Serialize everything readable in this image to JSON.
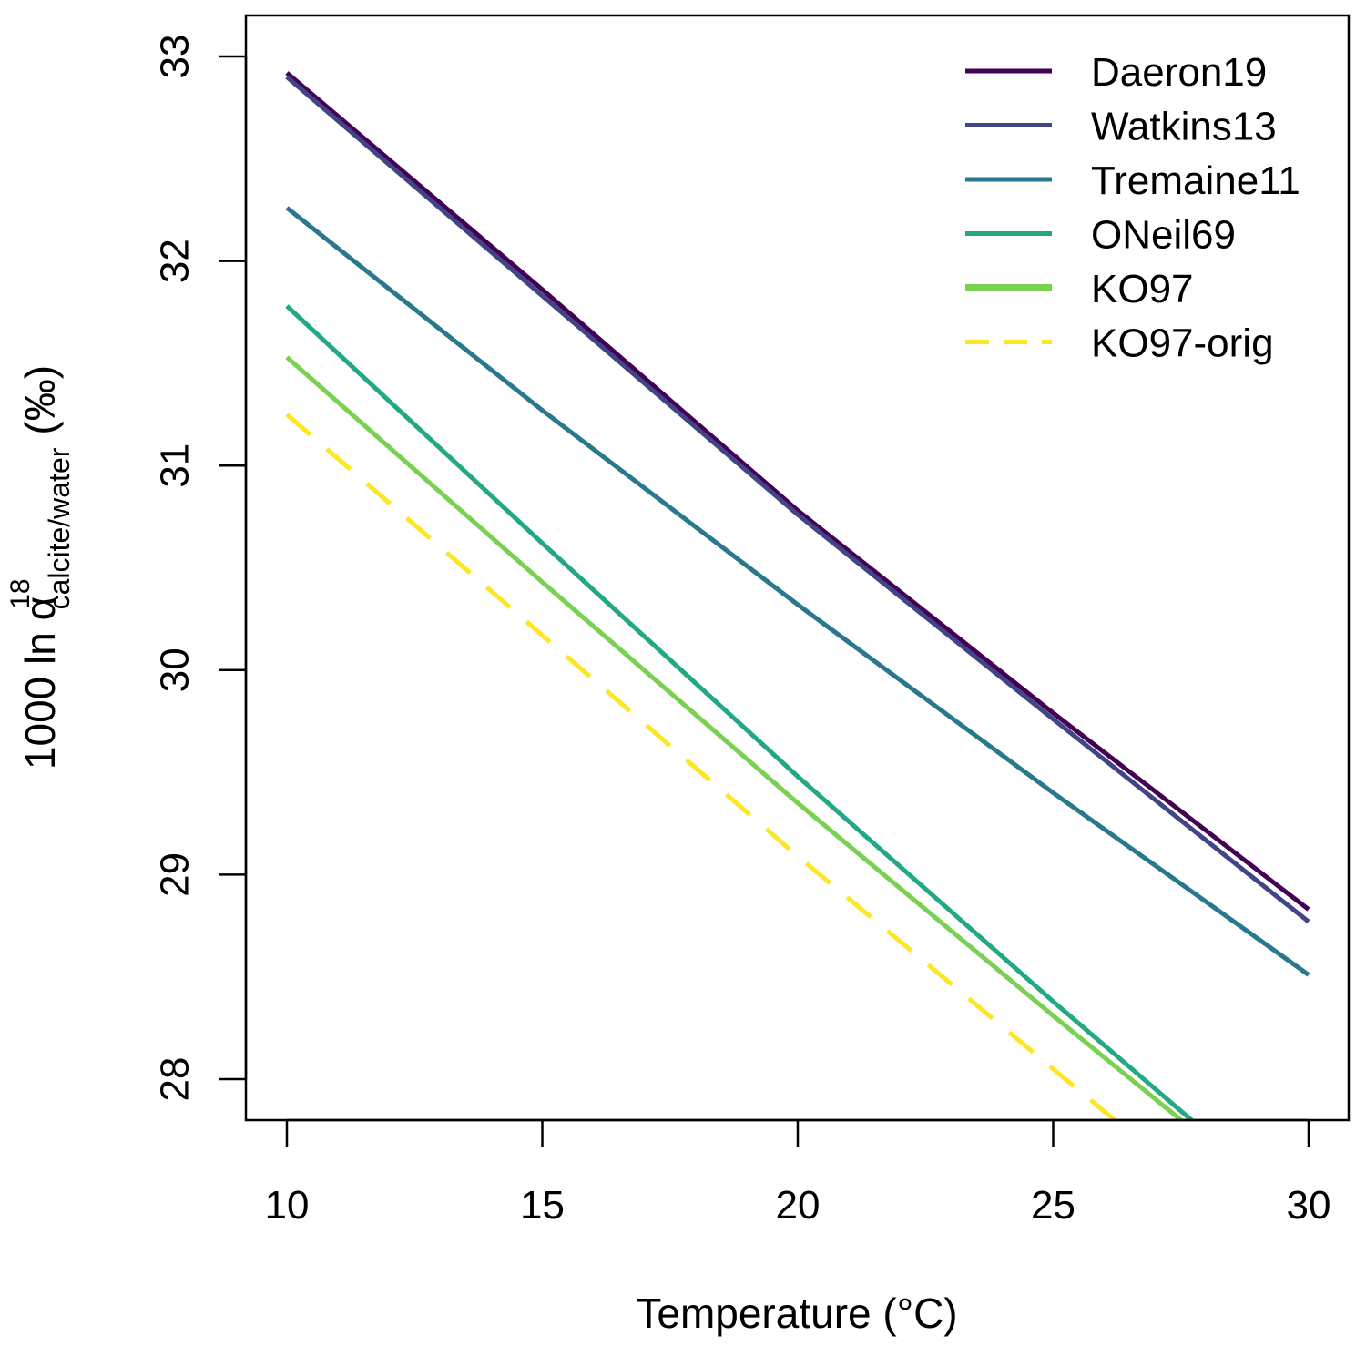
{
  "chart_data": {
    "type": "line",
    "title": "",
    "xlabel": "Temperature (°C)",
    "ylabel": {
      "prefix": "1000 ln α",
      "superscript": "18",
      "subscript": "calcite/water",
      "unit": "(‰)"
    },
    "xlim": [
      9.2,
      30.8
    ],
    "ylim": [
      27.8,
      33.2
    ],
    "x_ticks": [
      10,
      15,
      20,
      25,
      30
    ],
    "y_ticks": [
      28,
      29,
      30,
      31,
      32,
      33
    ],
    "x_tick_labels": [
      "10",
      "15",
      "20",
      "25",
      "30"
    ],
    "y_tick_labels": [
      "28",
      "29",
      "30",
      "31",
      "32",
      "33"
    ],
    "grid": false,
    "legend_position": "top-right",
    "series": [
      {
        "name": "Daeron19",
        "color": "#440154",
        "dash": "solid",
        "x": [
          10,
          15,
          20,
          25,
          30
        ],
        "y": [
          32.92,
          31.86,
          30.78,
          29.79,
          28.83
        ]
      },
      {
        "name": "Watkins13",
        "color": "#414487",
        "dash": "solid",
        "x": [
          10,
          15,
          20,
          25,
          30
        ],
        "y": [
          32.9,
          31.83,
          30.76,
          29.76,
          28.77
        ]
      },
      {
        "name": "Tremaine11",
        "color": "#2a788e",
        "dash": "solid",
        "x": [
          10,
          15,
          20,
          25,
          30
        ],
        "y": [
          32.26,
          31.27,
          30.32,
          29.4,
          28.51
        ]
      },
      {
        "name": "ONeil69",
        "color": "#22a884",
        "dash": "solid",
        "x": [
          10,
          15,
          20,
          25,
          27.8
        ],
        "y": [
          31.78,
          30.62,
          29.48,
          28.38,
          27.78
        ]
      },
      {
        "name": "KO97",
        "color": "#7ad151",
        "dash": "solid",
        "x": [
          10,
          15,
          20,
          25,
          27.6
        ],
        "y": [
          31.53,
          30.43,
          29.35,
          28.31,
          27.78
        ]
      },
      {
        "name": "KO97-orig",
        "color": "#fde725",
        "dash": "dashed",
        "x": [
          10,
          15,
          20,
          25,
          26.3
        ],
        "y": [
          31.25,
          30.17,
          29.09,
          28.05,
          27.78
        ]
      }
    ]
  }
}
